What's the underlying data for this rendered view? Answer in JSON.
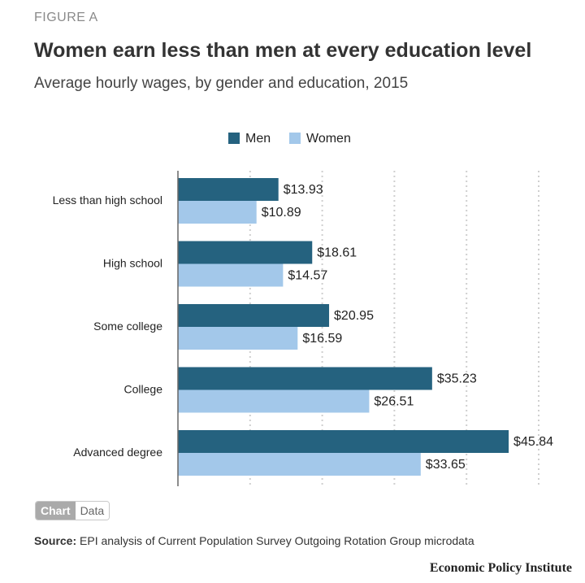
{
  "header": {
    "figure_label": "FIGURE A",
    "title": "Women earn less than men at every education level",
    "subtitle": "Average hourly wages, by gender and education, 2015"
  },
  "toggle": {
    "chart_label": "Chart",
    "data_label": "Data"
  },
  "source": {
    "label": "Source:",
    "text": "EPI analysis of Current Population Survey Outgoing Rotation Group microdata"
  },
  "brand": "Economic Policy Institute",
  "colors": {
    "men": "#25627f",
    "women": "#a3c8ea",
    "grid": "#cfcfcf",
    "axis": "#666666"
  },
  "chart_data": {
    "type": "bar",
    "orientation": "horizontal",
    "categories": [
      "Less than high school",
      "High school",
      "Some college",
      "College",
      "Advanced degree"
    ],
    "series": [
      {
        "name": "Men",
        "values": [
          13.93,
          18.61,
          20.95,
          35.23,
          45.84
        ]
      },
      {
        "name": "Women",
        "values": [
          10.89,
          14.57,
          16.59,
          26.51,
          33.65
        ]
      }
    ],
    "data_labels": {
      "Men": [
        "$13.93",
        "$18.61",
        "$20.95",
        "$35.23",
        "$45.84"
      ],
      "Women": [
        "$10.89",
        "$14.57",
        "$16.59",
        "$26.51",
        "$33.65"
      ]
    },
    "xlim": [
      0,
      50
    ],
    "x_gridlines": [
      10,
      20,
      30,
      40,
      50
    ],
    "legend": "top-center",
    "grid": true
  }
}
